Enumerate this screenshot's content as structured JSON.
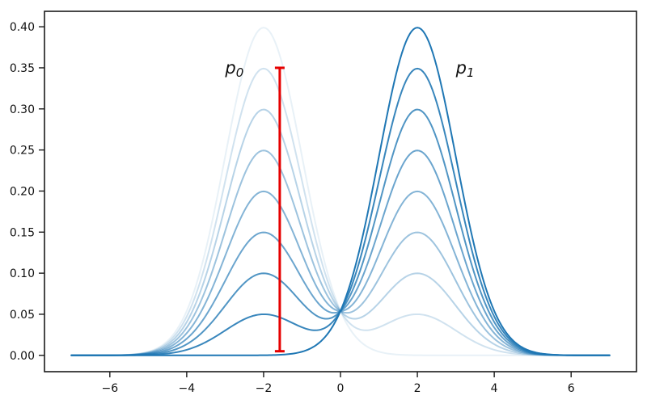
{
  "figure": {
    "background": "#ffffff",
    "title": ""
  },
  "chart_data": {
    "type": "line",
    "title": "",
    "xlabel": "",
    "ylabel": "",
    "description": "Nine Gaussian mixture densities interpolating between p0 = N(-2,1) and p1 = N(2,1); curve for weight t is (1-t)*p0(x) + t*p1(x), drawn in blue with opacity increasing with t",
    "grid": false,
    "legend": null,
    "xlim": [
      -7.7,
      7.7
    ],
    "ylim": [
      -0.0199,
      0.4188
    ],
    "x_samples": {
      "min": -7,
      "max": 7,
      "step": 0.05
    },
    "line_color": "#1f77b4",
    "line_width": 2,
    "axis_color": "#1a1a1a",
    "tick_font_size": 14,
    "x_ticks": [
      {
        "value": -6,
        "label": "−6"
      },
      {
        "value": -4,
        "label": "−4"
      },
      {
        "value": -2,
        "label": "−2"
      },
      {
        "value": 0,
        "label": "0"
      },
      {
        "value": 2,
        "label": "2"
      },
      {
        "value": 4,
        "label": "4"
      },
      {
        "value": 6,
        "label": "6"
      }
    ],
    "y_ticks": [
      {
        "value": 0.0,
        "label": "0.00"
      },
      {
        "value": 0.05,
        "label": "0.05"
      },
      {
        "value": 0.1,
        "label": "0.10"
      },
      {
        "value": 0.15,
        "label": "0.15"
      },
      {
        "value": 0.2,
        "label": "0.20"
      },
      {
        "value": 0.25,
        "label": "0.25"
      },
      {
        "value": 0.3,
        "label": "0.30"
      },
      {
        "value": 0.35,
        "label": "0.35"
      },
      {
        "value": 0.4,
        "label": "0.40"
      }
    ],
    "components": {
      "p0": {
        "mean": -2,
        "std": 1,
        "peak_density": 0.3989
      },
      "p1": {
        "mean": 2,
        "std": 1,
        "peak_density": 0.3989
      }
    },
    "series": [
      {
        "name": "mixture t=0.000",
        "t": 0.0,
        "alpha": 0.1,
        "left_peak": 0.4,
        "right_peak": 0.0
      },
      {
        "name": "mixture t=0.125",
        "t": 0.125,
        "alpha": 0.21,
        "left_peak": 0.35,
        "right_peak": 0.05
      },
      {
        "name": "mixture t=0.250",
        "t": 0.25,
        "alpha": 0.32,
        "left_peak": 0.3,
        "right_peak": 0.1
      },
      {
        "name": "mixture t=0.375",
        "t": 0.375,
        "alpha": 0.44,
        "left_peak": 0.25,
        "right_peak": 0.15
      },
      {
        "name": "mixture t=0.500",
        "t": 0.5,
        "alpha": 0.55,
        "left_peak": 0.2,
        "right_peak": 0.2
      },
      {
        "name": "mixture t=0.625",
        "t": 0.625,
        "alpha": 0.66,
        "left_peak": 0.15,
        "right_peak": 0.25
      },
      {
        "name": "mixture t=0.750",
        "t": 0.75,
        "alpha": 0.78,
        "left_peak": 0.1,
        "right_peak": 0.3
      },
      {
        "name": "mixture t=0.875",
        "t": 0.875,
        "alpha": 0.89,
        "left_peak": 0.05,
        "right_peak": 0.35
      },
      {
        "name": "mixture t=1.000",
        "t": 1.0,
        "alpha": 1.0,
        "left_peak": 0.0,
        "right_peak": 0.4
      }
    ],
    "annotations": [
      {
        "id": "p0-label",
        "base": "p",
        "sub": "0",
        "x": -3.0,
        "y": 0.35
      },
      {
        "id": "p1-label",
        "base": "p",
        "sub": "1",
        "x": 3.0,
        "y": 0.35
      }
    ],
    "errorbar": {
      "x": -1.58,
      "y_min": 0.005,
      "y_max": 0.35,
      "color": "#e60000",
      "line_width": 3,
      "cap_half_width": 6
    }
  }
}
